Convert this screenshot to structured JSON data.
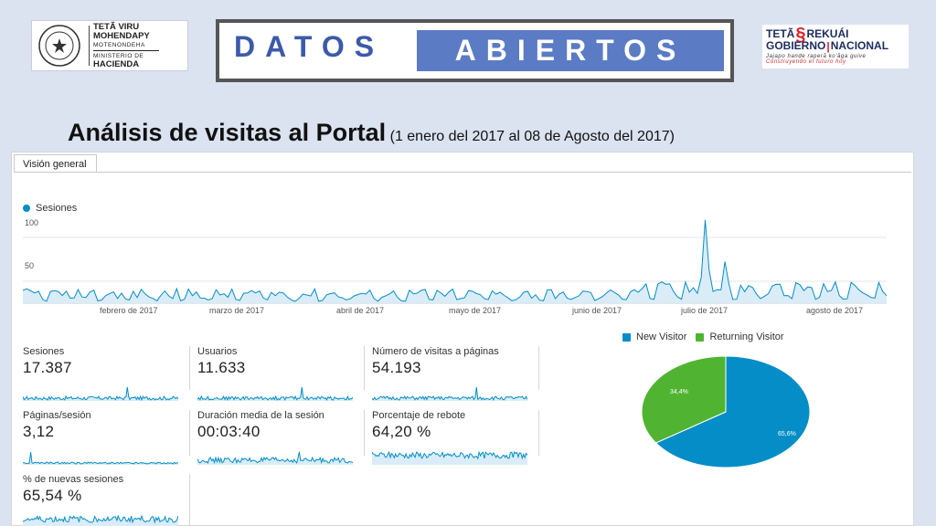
{
  "header": {
    "logo_left": {
      "line1": "TETÃ VIRU",
      "line2": "MOHENDAPY",
      "line3": "MOTENONDEHA",
      "line4": "MINISTERIO DE",
      "line5": "HACIENDA",
      "seal_text": "REPUBLICA DEL PARAGUAY"
    },
    "banner_left": "DATOS",
    "banner_right": "ABIERTOS",
    "logo_right": {
      "tetã": "TETÃ",
      "rekuai": "REKUÁI",
      "gobierno": "GOBIERNO",
      "nacional": "NACIONAL",
      "tagline1": "Jajapo hande raperã ko'ãga guive",
      "tagline2": "Construyendo el futuro hoy"
    }
  },
  "title": {
    "main": "Análisis de visitas al Portal",
    "sub": "(1 enero del 2017 al 08 de Agosto del 2017)"
  },
  "analytics": {
    "tab": "Visión general",
    "series_label": "Sesiones",
    "y_ticks": [
      "100",
      "50"
    ],
    "months": [
      "febrero de 2017",
      "marzo de 2017",
      "abril de 2017",
      "mayo de 2017",
      "junio de 2017",
      "julio de 2017",
      "agosto de 2017"
    ],
    "colors": {
      "blue": "#058dc7",
      "green": "#50b432"
    },
    "metrics": [
      {
        "label": "Sesiones",
        "value": "17.387"
      },
      {
        "label": "Usuarios",
        "value": "11.633"
      },
      {
        "label": "Número de visitas a páginas",
        "value": "54.193"
      },
      {
        "label": "Páginas/sesión",
        "value": "3,12"
      },
      {
        "label": "Duración media de la sesión",
        "value": "00:03:40"
      },
      {
        "label": "Porcentaje de rebote",
        "value": "64,20 %"
      },
      {
        "label": "% de nuevas sesiones",
        "value": "65,54 %"
      }
    ],
    "pie": {
      "legend_new": "New Visitor",
      "legend_returning": "Returning Visitor",
      "new_pct_label": "65,6%",
      "returning_pct_label": "34,4%"
    }
  },
  "chart_data": {
    "type": "pie",
    "categories": [
      "New Visitor",
      "Returning Visitor"
    ],
    "values": [
      65.6,
      34.4
    ]
  }
}
